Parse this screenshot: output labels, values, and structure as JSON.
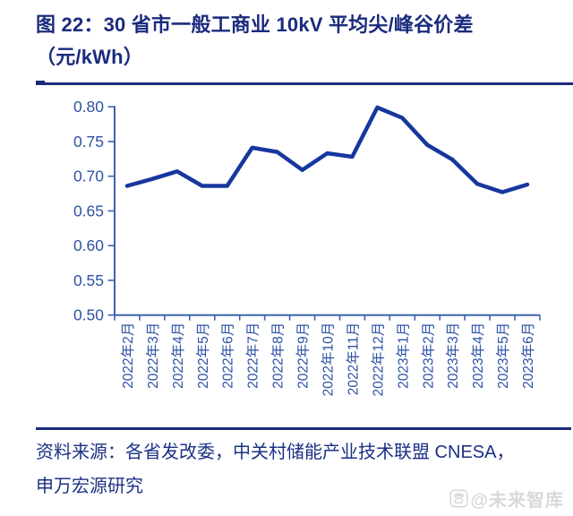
{
  "header": {
    "figure_title_line1": "图 22：30 省市一般工商业 10kV 平均尖/峰谷价差",
    "figure_title_line2": "（元/kWh）"
  },
  "chart_data": {
    "type": "line",
    "title": "30 省市一般工商业 10kV 平均尖/峰谷价差（元/kWh）",
    "categories": [
      "2022年2月",
      "2022年3月",
      "2022年4月",
      "2022年5月",
      "2022年6月",
      "2022年7月",
      "2022年8月",
      "2022年9月",
      "2022年10月",
      "2022年11月",
      "2022年12月",
      "2023年1月",
      "2023年2月",
      "2023年3月",
      "2023年4月",
      "2023年5月",
      "2023年6月"
    ],
    "values": [
      0.686,
      0.696,
      0.707,
      0.686,
      0.686,
      0.741,
      0.735,
      0.709,
      0.733,
      0.728,
      0.799,
      0.784,
      0.745,
      0.724,
      0.689,
      0.677,
      0.688
    ],
    "xlabel": "",
    "ylabel": "",
    "ylim": [
      0.5,
      0.8
    ],
    "ytick_step": 0.05,
    "ytick_labels": [
      "0.50",
      "0.55",
      "0.60",
      "0.65",
      "0.70",
      "0.75",
      "0.80"
    ],
    "grid": false,
    "legend": "none",
    "line_color": "#16379e",
    "axis_color": "#3f63ae",
    "tick_label_color": "#2d52a5"
  },
  "footer": {
    "source_line1": "资料来源：各省发改委，中关村储能产业技术联盟 CNESA，",
    "source_line2": "申万宏源研究",
    "watermark_icon": "paw-icon",
    "watermark_text": "@未来智库"
  },
  "colors": {
    "title": "#1a2b7e",
    "rule": "#1a2b7e",
    "source_text": "#1b3184",
    "series_line": "#16379e",
    "watermark": "#d9d9d9",
    "background": "#ffffff"
  }
}
